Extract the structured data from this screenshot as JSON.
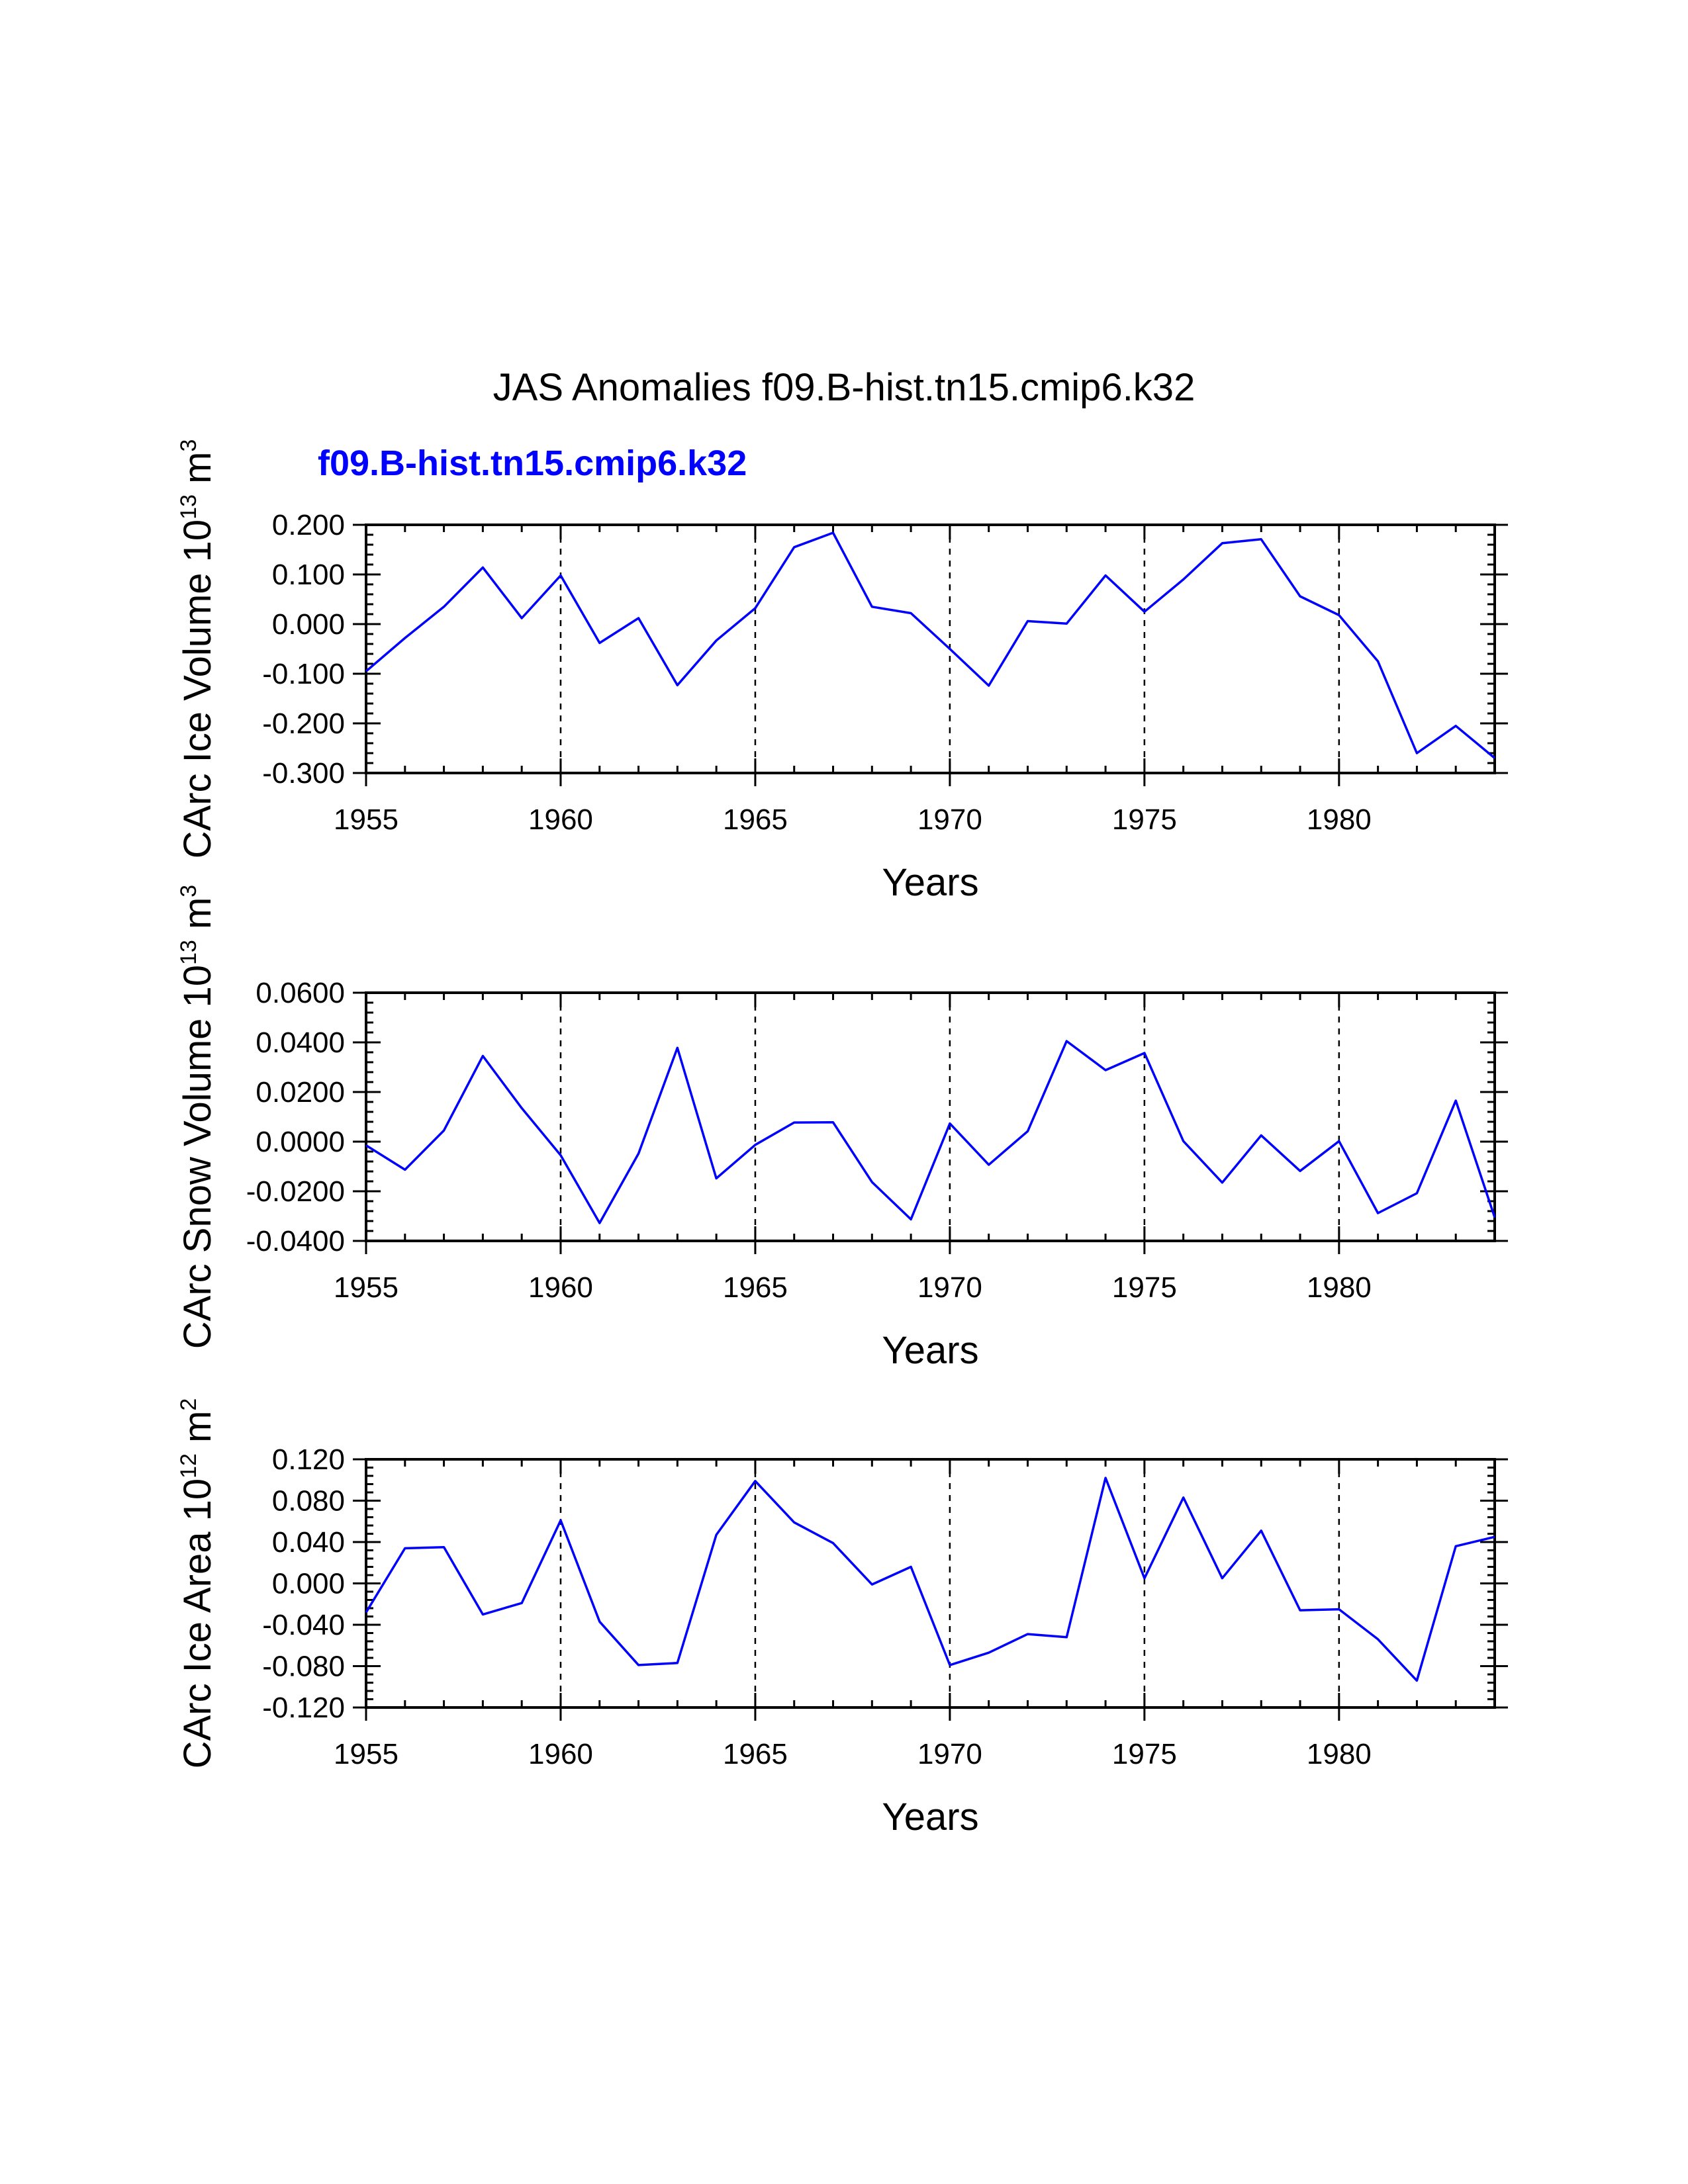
{
  "title": "JAS Anomalies f09.B-hist.tn15.cmip6.k32",
  "series_name": "f09.B-hist.tn15.cmip6.k32",
  "series_color": "#0000FF",
  "chart_data": [
    {
      "type": "line",
      "xlabel": "Years",
      "ylabel": {
        "text": "CArc Ice Volume 10",
        "exp": "13",
        "unit": "m",
        "unit_exp": "3"
      },
      "xlim": [
        1955,
        1984
      ],
      "ylim": [
        -0.3,
        0.2
      ],
      "x_ticks": [
        1955,
        1960,
        1965,
        1970,
        1975,
        1980
      ],
      "x_tick_labels": [
        "1955",
        "1960",
        "1965",
        "1970",
        "1975",
        "1980"
      ],
      "y_ticks": [
        -0.3,
        -0.2,
        -0.1,
        0.0,
        0.1,
        0.2
      ],
      "y_tick_labels": [
        "-0.300",
        "-0.200",
        "-0.100",
        "0.000",
        "0.100",
        "0.200"
      ],
      "y_minor_step": 0.02,
      "vlines": [
        1960,
        1965,
        1970,
        1975,
        1980
      ],
      "x": [
        1955,
        1956,
        1957,
        1958,
        1959,
        1960,
        1961,
        1962,
        1963,
        1964,
        1965,
        1966,
        1967,
        1968,
        1969,
        1970,
        1971,
        1972,
        1973,
        1974,
        1975,
        1976,
        1977,
        1978,
        1979,
        1980,
        1981,
        1982,
        1983,
        1984
      ],
      "series": [
        {
          "name": "f09.B-hist.tn15.cmip6.k32",
          "values": [
            -0.095,
            -0.028,
            0.035,
            0.114,
            0.012,
            0.098,
            -0.038,
            0.012,
            -0.123,
            -0.033,
            0.032,
            0.155,
            0.184,
            0.035,
            0.022,
            -0.05,
            -0.124,
            0.006,
            0.001,
            0.098,
            0.025,
            0.09,
            0.163,
            0.171,
            0.056,
            0.018,
            -0.075,
            -0.26,
            -0.205,
            -0.27
          ]
        }
      ]
    },
    {
      "type": "line",
      "xlabel": "Years",
      "ylabel": {
        "text": "CArc Snow Volume 10",
        "exp": "13",
        "unit": "m",
        "unit_exp": "3"
      },
      "xlim": [
        1955,
        1984
      ],
      "ylim": [
        -0.04,
        0.06
      ],
      "x_ticks": [
        1955,
        1960,
        1965,
        1970,
        1975,
        1980
      ],
      "x_tick_labels": [
        "1955",
        "1960",
        "1965",
        "1970",
        "1975",
        "1980"
      ],
      "y_ticks": [
        -0.04,
        -0.02,
        0.0,
        0.02,
        0.04,
        0.06
      ],
      "y_tick_labels": [
        "-0.0400",
        "-0.0200",
        "0.0000",
        "0.0200",
        "0.0400",
        "0.0600"
      ],
      "y_minor_step": 0.004,
      "vlines": [
        1960,
        1965,
        1970,
        1975,
        1980
      ],
      "x": [
        1955,
        1956,
        1957,
        1958,
        1959,
        1960,
        1961,
        1962,
        1963,
        1964,
        1965,
        1966,
        1967,
        1968,
        1969,
        1970,
        1971,
        1972,
        1973,
        1974,
        1975,
        1976,
        1977,
        1978,
        1979,
        1980,
        1981,
        1982,
        1983,
        1984
      ],
      "series": [
        {
          "name": "f09.B-hist.tn15.cmip6.k32",
          "values": [
            -0.0015,
            -0.0113,
            0.0045,
            0.0345,
            0.0135,
            -0.0055,
            -0.0328,
            -0.0048,
            0.0378,
            -0.0148,
            -0.0013,
            0.0077,
            0.0078,
            -0.0163,
            -0.0313,
            0.0073,
            -0.0093,
            0.0042,
            0.0405,
            0.0288,
            0.0357,
            0.0002,
            -0.0165,
            0.0025,
            -0.0118,
            0.0002,
            -0.0288,
            -0.0208,
            0.0165,
            -0.0305
          ]
        }
      ]
    },
    {
      "type": "line",
      "xlabel": "Years",
      "ylabel": {
        "text": "CArc Ice Area 10",
        "exp": "12",
        "unit": "m",
        "unit_exp": "2"
      },
      "xlim": [
        1955,
        1984
      ],
      "ylim": [
        -0.12,
        0.12
      ],
      "x_ticks": [
        1955,
        1960,
        1965,
        1970,
        1975,
        1980
      ],
      "x_tick_labels": [
        "1955",
        "1960",
        "1965",
        "1970",
        "1975",
        "1980"
      ],
      "y_ticks": [
        -0.12,
        -0.08,
        -0.04,
        0.0,
        0.04,
        0.08,
        0.12
      ],
      "y_tick_labels": [
        "-0.120",
        "-0.080",
        "-0.040",
        "0.000",
        "0.040",
        "0.080",
        "0.120"
      ],
      "y_minor_step": 0.008,
      "vlines": [
        1960,
        1965,
        1970,
        1975,
        1980
      ],
      "x": [
        1955,
        1956,
        1957,
        1958,
        1959,
        1960,
        1961,
        1962,
        1963,
        1964,
        1965,
        1966,
        1967,
        1968,
        1969,
        1970,
        1971,
        1972,
        1973,
        1974,
        1975,
        1976,
        1977,
        1978,
        1979,
        1980,
        1981,
        1982,
        1983,
        1984
      ],
      "series": [
        {
          "name": "f09.B-hist.tn15.cmip6.k32",
          "values": [
            -0.028,
            0.034,
            0.035,
            -0.03,
            -0.019,
            0.061,
            -0.037,
            -0.079,
            -0.077,
            0.047,
            0.099,
            0.059,
            0.039,
            -0.001,
            0.016,
            -0.079,
            -0.067,
            -0.049,
            -0.052,
            0.102,
            0.005,
            0.083,
            0.005,
            0.051,
            -0.026,
            -0.025,
            -0.054,
            -0.094,
            0.036,
            0.045
          ]
        }
      ]
    }
  ]
}
